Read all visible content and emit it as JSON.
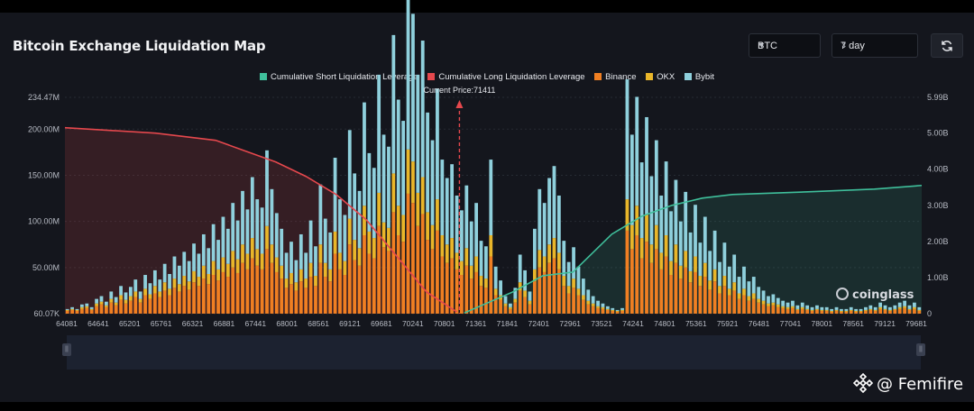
{
  "header": {
    "title": "Bitcoin Exchange Liquidation Map",
    "coin_select": "BTC",
    "period_select": "7 day",
    "refresh_icon": "refresh-icon"
  },
  "watermark": {
    "chart_logo": "coinglass",
    "author": "@ Femifire"
  },
  "colors": {
    "short_line": "#3fbf9b",
    "long_line": "#e5484d",
    "binance": "#f07f22",
    "okx": "#e9b62a",
    "bybit": "#8fd0dc",
    "current_price": "#e5484d"
  },
  "chart_data": {
    "type": "bar",
    "title": "Bitcoin Exchange Liquidation Map",
    "current_price_label": "Current Price:71411",
    "current_price": 71411,
    "legend": [
      {
        "name": "Cumulative Short Liquidation Leverage",
        "color": "#3fbf9b"
      },
      {
        "name": "Cumulative Long Liquidation Leverage",
        "color": "#e5484d"
      },
      {
        "name": "Binance",
        "color": "#f07f22"
      },
      {
        "name": "OKX",
        "color": "#e9b62a"
      },
      {
        "name": "Bybit",
        "color": "#8fd0dc"
      }
    ],
    "x_tick_labels": [
      "64081",
      "64641",
      "65201",
      "65761",
      "66321",
      "66881",
      "67441",
      "68001",
      "68561",
      "69121",
      "69681",
      "70241",
      "70801",
      "71361",
      "71841",
      "72401",
      "72961",
      "73521",
      "74241",
      "74801",
      "75361",
      "75921",
      "76481",
      "77041",
      "78001",
      "78561",
      "79121",
      "79681"
    ],
    "x_range": [
      64081,
      80000
    ],
    "y_left_ticks": [
      "234.47M",
      "200.00M",
      "150.00M",
      "100.00M",
      "50.00M",
      "60.07K"
    ],
    "y_left_range": [
      0,
      234.47
    ],
    "y_left_unit": "M",
    "y_right_ticks": [
      "5.99B",
      "5.00B",
      "4.00B",
      "3.00B",
      "2.00B",
      "1.00B",
      "0"
    ],
    "y_right_range": [
      0,
      5.99
    ],
    "y_right_unit": "B",
    "series": [
      {
        "name": "Binance",
        "values": [
          3,
          4,
          3,
          5,
          6,
          4,
          8,
          10,
          7,
          12,
          9,
          15,
          11,
          14,
          18,
          12,
          20,
          16,
          22,
          18,
          25,
          20,
          28,
          24,
          30,
          26,
          34,
          30,
          38,
          32,
          42,
          36,
          45,
          40,
          50,
          44,
          55,
          48,
          60,
          52,
          48,
          70,
          55,
          45,
          38,
          28,
          32,
          25,
          35,
          28,
          40,
          30,
          55,
          40,
          35,
          65,
          48,
          42,
          75,
          58,
          52,
          85,
          65,
          60,
          95,
          72,
          68,
          110,
          85,
          78,
          130,
          120,
          95,
          108,
          80,
          70,
          90,
          62,
          55,
          60,
          48,
          42,
          52,
          38,
          45,
          30,
          28,
          62,
          20,
          15,
          8,
          5,
          12,
          25,
          18,
          10,
          35,
          50,
          45,
          55,
          60,
          48,
          30,
          22,
          28,
          20,
          15,
          10,
          8,
          6,
          5,
          4,
          3,
          2,
          3,
          90,
          70,
          85,
          60,
          78,
          55,
          70,
          48,
          62,
          42,
          55,
          38,
          50,
          34,
          45,
          30,
          40,
          26,
          35,
          22,
          30,
          20,
          25,
          16,
          20,
          14,
          16,
          12,
          10,
          8,
          9,
          7,
          6,
          5,
          6,
          4,
          5,
          4,
          3,
          4,
          3,
          3,
          2,
          3,
          2,
          2,
          3,
          2,
          2,
          3,
          4,
          3,
          5,
          4,
          3,
          4,
          5,
          6,
          4,
          5,
          3
        ]
      },
      {
        "name": "OKX",
        "values": [
          1,
          1,
          1,
          2,
          2,
          1,
          3,
          3,
          2,
          4,
          3,
          5,
          4,
          5,
          6,
          4,
          7,
          5,
          8,
          6,
          9,
          7,
          10,
          8,
          11,
          9,
          12,
          10,
          14,
          11,
          15,
          12,
          16,
          14,
          18,
          15,
          20,
          17,
          22,
          18,
          17,
          25,
          20,
          16,
          14,
          10,
          12,
          9,
          13,
          10,
          15,
          11,
          20,
          15,
          13,
          24,
          18,
          15,
          28,
          22,
          19,
          32,
          24,
          22,
          36,
          27,
          25,
          42,
          32,
          29,
          48,
          45,
          36,
          40,
          30,
          26,
          34,
          23,
          20,
          22,
          18,
          15,
          19,
          14,
          17,
          11,
          10,
          23,
          7,
          5,
          3,
          2,
          4,
          9,
          7,
          4,
          13,
          19,
          17,
          20,
          22,
          18,
          11,
          8,
          10,
          7,
          5,
          4,
          3,
          2,
          2,
          1,
          1,
          1,
          1,
          34,
          26,
          32,
          22,
          29,
          20,
          26,
          18,
          23,
          15,
          20,
          14,
          18,
          12,
          17,
          11,
          15,
          10,
          13,
          8,
          11,
          7,
          9,
          6,
          7,
          5,
          6,
          4,
          4,
          3,
          3,
          3,
          2,
          2,
          2,
          1,
          2,
          1,
          1,
          1,
          1,
          1,
          1,
          1,
          1,
          1,
          1,
          1,
          1,
          1,
          1,
          1,
          2,
          1,
          1,
          1,
          2,
          2,
          1,
          2,
          1
        ]
      },
      {
        "name": "Bybit",
        "values": [
          1,
          2,
          1,
          3,
          3,
          2,
          5,
          6,
          4,
          8,
          6,
          10,
          8,
          10,
          13,
          8,
          15,
          12,
          17,
          13,
          20,
          16,
          24,
          20,
          26,
          22,
          30,
          25,
          34,
          28,
          40,
          32,
          44,
          38,
          52,
          42,
          58,
          48,
          66,
          54,
          50,
          82,
          60,
          48,
          40,
          28,
          34,
          24,
          38,
          28,
          46,
          32,
          65,
          48,
          40,
          80,
          58,
          50,
          96,
          72,
          62,
          112,
          85,
          76,
          128,
          95,
          88,
          150,
          115,
          102,
          170,
          160,
          128,
          148,
          108,
          92,
          120,
          82,
          72,
          80,
          62,
          55,
          68,
          48,
          58,
          38,
          35,
          82,
          24,
          16,
          8,
          4,
          12,
          30,
          22,
          10,
          44,
          66,
          58,
          72,
          78,
          62,
          38,
          26,
          34,
          24,
          18,
          12,
          8,
          6,
          4,
          3,
          2,
          1,
          2,
          130,
          98,
          118,
          82,
          106,
          74,
          92,
          62,
          80,
          54,
          70,
          48,
          64,
          42,
          56,
          36,
          50,
          32,
          42,
          26,
          36,
          24,
          30,
          18,
          24,
          16,
          18,
          13,
          11,
          8,
          9,
          7,
          6,
          5,
          6,
          4,
          5,
          4,
          3,
          4,
          3,
          3,
          2,
          3,
          2,
          2,
          3,
          2,
          2,
          3,
          4,
          3,
          5,
          4,
          3,
          4,
          5,
          6,
          4,
          5,
          3
        ]
      }
    ],
    "cumulative_long": [
      {
        "price": 64081,
        "value": 5.15
      },
      {
        "price": 65761,
        "value": 5.0
      },
      {
        "price": 66881,
        "value": 4.8
      },
      {
        "price": 67441,
        "value": 4.5
      },
      {
        "price": 68001,
        "value": 4.2
      },
      {
        "price": 68561,
        "value": 3.8
      },
      {
        "price": 69121,
        "value": 3.3
      },
      {
        "price": 69681,
        "value": 2.6
      },
      {
        "price": 70241,
        "value": 1.6
      },
      {
        "price": 70801,
        "value": 0.6
      },
      {
        "price": 71361,
        "value": 0.05
      }
    ],
    "cumulative_short": [
      {
        "price": 71500,
        "value": 0.02
      },
      {
        "price": 72401,
        "value": 0.6
      },
      {
        "price": 72961,
        "value": 1.05
      },
      {
        "price": 73521,
        "value": 1.15
      },
      {
        "price": 74241,
        "value": 2.2
      },
      {
        "price": 74801,
        "value": 2.7
      },
      {
        "price": 75361,
        "value": 3.0
      },
      {
        "price": 75921,
        "value": 3.2
      },
      {
        "price": 76481,
        "value": 3.3
      },
      {
        "price": 78001,
        "value": 3.38
      },
      {
        "price": 79121,
        "value": 3.45
      },
      {
        "price": 80000,
        "value": 3.55
      }
    ]
  }
}
